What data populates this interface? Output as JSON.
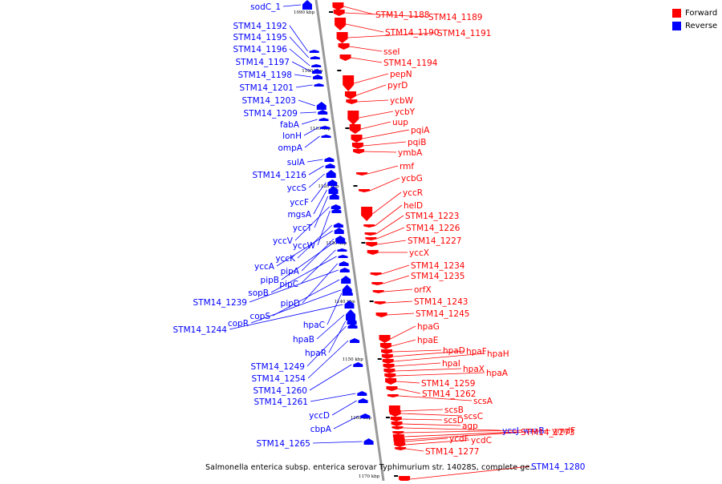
{
  "legend": {
    "items": [
      {
        "label": "Forward",
        "color": "#ff0000"
      },
      {
        "label": "Reverse",
        "color": "#0000ff"
      }
    ]
  },
  "genome_title": "Salmonella enterica subsp. enterica serovar Typhimurium str. 14028S, complete ge...",
  "colors": {
    "forward": "#ff0000",
    "reverse": "#0000ff",
    "backbone": "#999999"
  },
  "ticks": [
    "1090 kbp",
    "1100 kbp",
    "1110 kbp",
    "1120 kbp",
    "1130 kbp",
    "1140 kbp",
    "1150 kbp",
    "1160 kbp",
    "1170 kbp"
  ],
  "reverse_genes": [
    "sodC_1",
    "STM14_1192",
    "STM14_1195",
    "STM14_1196",
    "STM14_1197",
    "STM14_1198",
    "STM14_1201",
    "STM14_1203",
    "STM14_1209",
    "fabA",
    "lonH",
    "ompA",
    "sulA",
    "STM14_1216",
    "yccS",
    "yccF",
    "mgsA",
    "yccT",
    "yccV",
    "yccW",
    "yccK",
    "yccA",
    "pipA",
    "pipB",
    "pipC",
    "sopB",
    "pipD",
    "STM14_1239",
    "copS",
    "copR",
    "hpaC",
    "STM14_1244",
    "hpaB",
    "hpaR",
    "STM14_1249",
    "STM14_1254",
    "STM14_1260",
    "STM14_1261",
    "yccD",
    "cbpA",
    "STM14_1265"
  ],
  "forward_genes": [
    "STM14_1188",
    "STM14_1189",
    "STM14_1190",
    "STM14_1191",
    "sseI",
    "STM14_1194",
    "pepN",
    "pyrD",
    "ycbW",
    "ycbY",
    "uup",
    "pqiA",
    "pqiB",
    "ymbA",
    "rmf",
    "ycbG",
    "yccR",
    "helD",
    "STM14_1223",
    "STM14_1226",
    "STM14_1227",
    "yccX",
    "STM14_1234",
    "STM14_1235",
    "orfX",
    "STM14_1243",
    "STM14_1245",
    "hpaG",
    "hpaE",
    "hpaD",
    "hpaF",
    "hpaH",
    "hpaI",
    "hpaX",
    "hpaA",
    "STM14_1259",
    "STM14_1262",
    "scsA",
    "scsB",
    "scsC",
    "scsD",
    "agp",
    "yccJ",
    "wraB",
    "STM14_1273",
    "ymdF",
    "ycdF",
    "ycdC",
    "STM14_1277",
    "STM14_1280"
  ]
}
